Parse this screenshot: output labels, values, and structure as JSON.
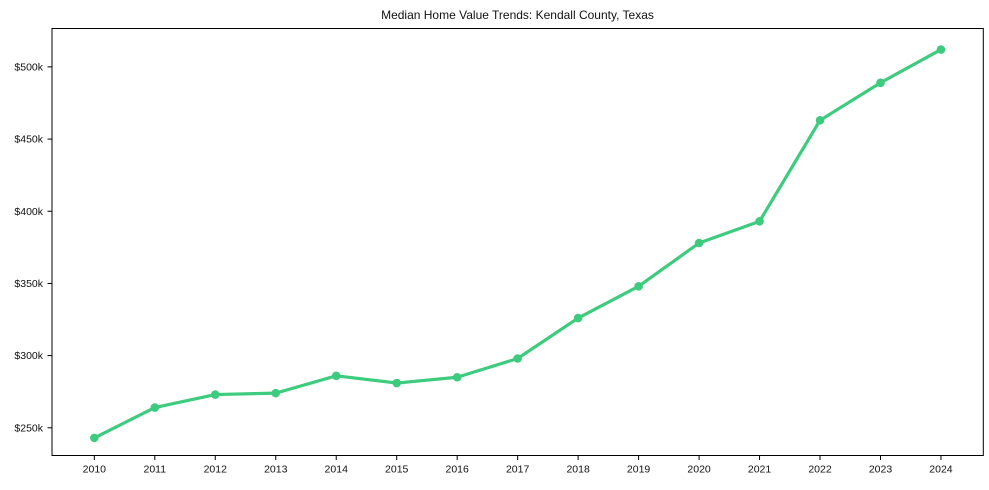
{
  "page": {
    "background_color": "#ffffff",
    "text_color": "#111111"
  },
  "chart_data": {
    "type": "line",
    "title": "Median Home Value Trends: Kendall County, Texas",
    "x": [
      2010,
      2011,
      2012,
      2013,
      2014,
      2015,
      2016,
      2017,
      2018,
      2019,
      2020,
      2021,
      2022,
      2023,
      2024
    ],
    "x_tick_labels": [
      "2010",
      "2011",
      "2012",
      "2013",
      "2014",
      "2015",
      "2016",
      "2017",
      "2018",
      "2019",
      "2020",
      "2021",
      "2022",
      "2023",
      "2024"
    ],
    "series": [
      {
        "name": "Median Home Value",
        "values": [
          243,
          264,
          273,
          274,
          286,
          281,
          285,
          298,
          326,
          348,
          378,
          393,
          463,
          489,
          512
        ],
        "unit": "USD thousands"
      }
    ],
    "y_ticks": [
      250,
      300,
      350,
      400,
      450,
      500
    ],
    "y_tick_labels": [
      "$250k",
      "$300k",
      "$350k",
      "$400k",
      "$450k",
      "$500k"
    ],
    "xlabel": "",
    "ylabel": "",
    "xlim": [
      2009.3,
      2024.7
    ],
    "ylim": [
      230.8,
      526.6
    ],
    "grid": false,
    "legend_position": "none",
    "line_color": "#3dcb7d",
    "marker": "circle",
    "axis_color": "#000000",
    "tick_label_color": "#111111"
  }
}
